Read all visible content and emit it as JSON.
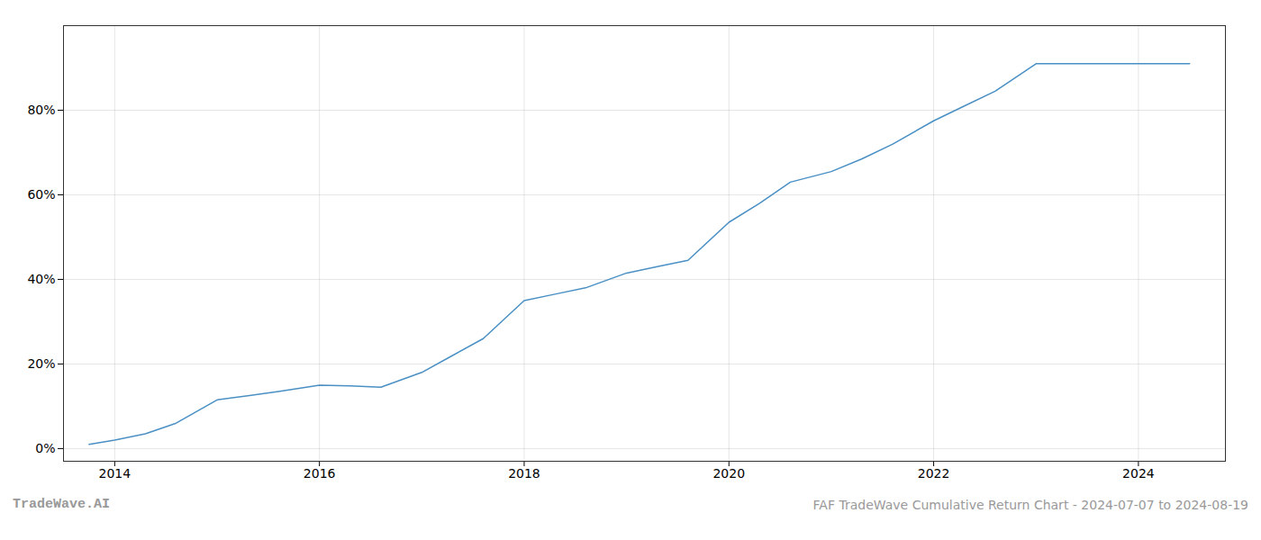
{
  "chart_data": {
    "type": "line",
    "title": "FAF TradeWave Cumulative Return Chart - 2024-07-07 to 2024-08-19",
    "annotations": [
      "TradeWave.AI"
    ],
    "x": [
      2013.75,
      2014.0,
      2014.3,
      2014.6,
      2015.0,
      2015.3,
      2015.6,
      2016.0,
      2016.3,
      2016.6,
      2017.0,
      2017.3,
      2017.6,
      2018.0,
      2018.3,
      2018.6,
      2019.0,
      2019.3,
      2019.6,
      2020.0,
      2020.3,
      2020.6,
      2021.0,
      2021.3,
      2021.6,
      2022.0,
      2022.3,
      2022.6,
      2023.0,
      2023.3,
      2023.6,
      2024.0,
      2024.5
    ],
    "values": [
      1.0,
      2.0,
      3.5,
      6.0,
      11.5,
      12.5,
      13.5,
      15.0,
      14.8,
      14.5,
      18.0,
      22.0,
      26.0,
      35.0,
      36.5,
      38.0,
      41.5,
      43.0,
      44.5,
      53.5,
      58.0,
      63.0,
      65.5,
      68.5,
      72.0,
      77.5,
      81.0,
      84.5,
      91.0,
      91.0,
      91.0,
      91.0,
      91.0
    ],
    "color": "#4a90c4",
    "xlim": [
      2013.5,
      2024.85
    ],
    "xticks": [
      2014,
      2016,
      2018,
      2020,
      2022,
      2024
    ],
    "ylim": [
      -3,
      100
    ],
    "yticks": [
      {
        "value": 0,
        "label": "0%"
      },
      {
        "value": 20,
        "label": "20%"
      },
      {
        "value": 40,
        "label": "40%"
      },
      {
        "value": 60,
        "label": "60%"
      },
      {
        "value": 80,
        "label": "80%"
      }
    ],
    "grid": true
  }
}
